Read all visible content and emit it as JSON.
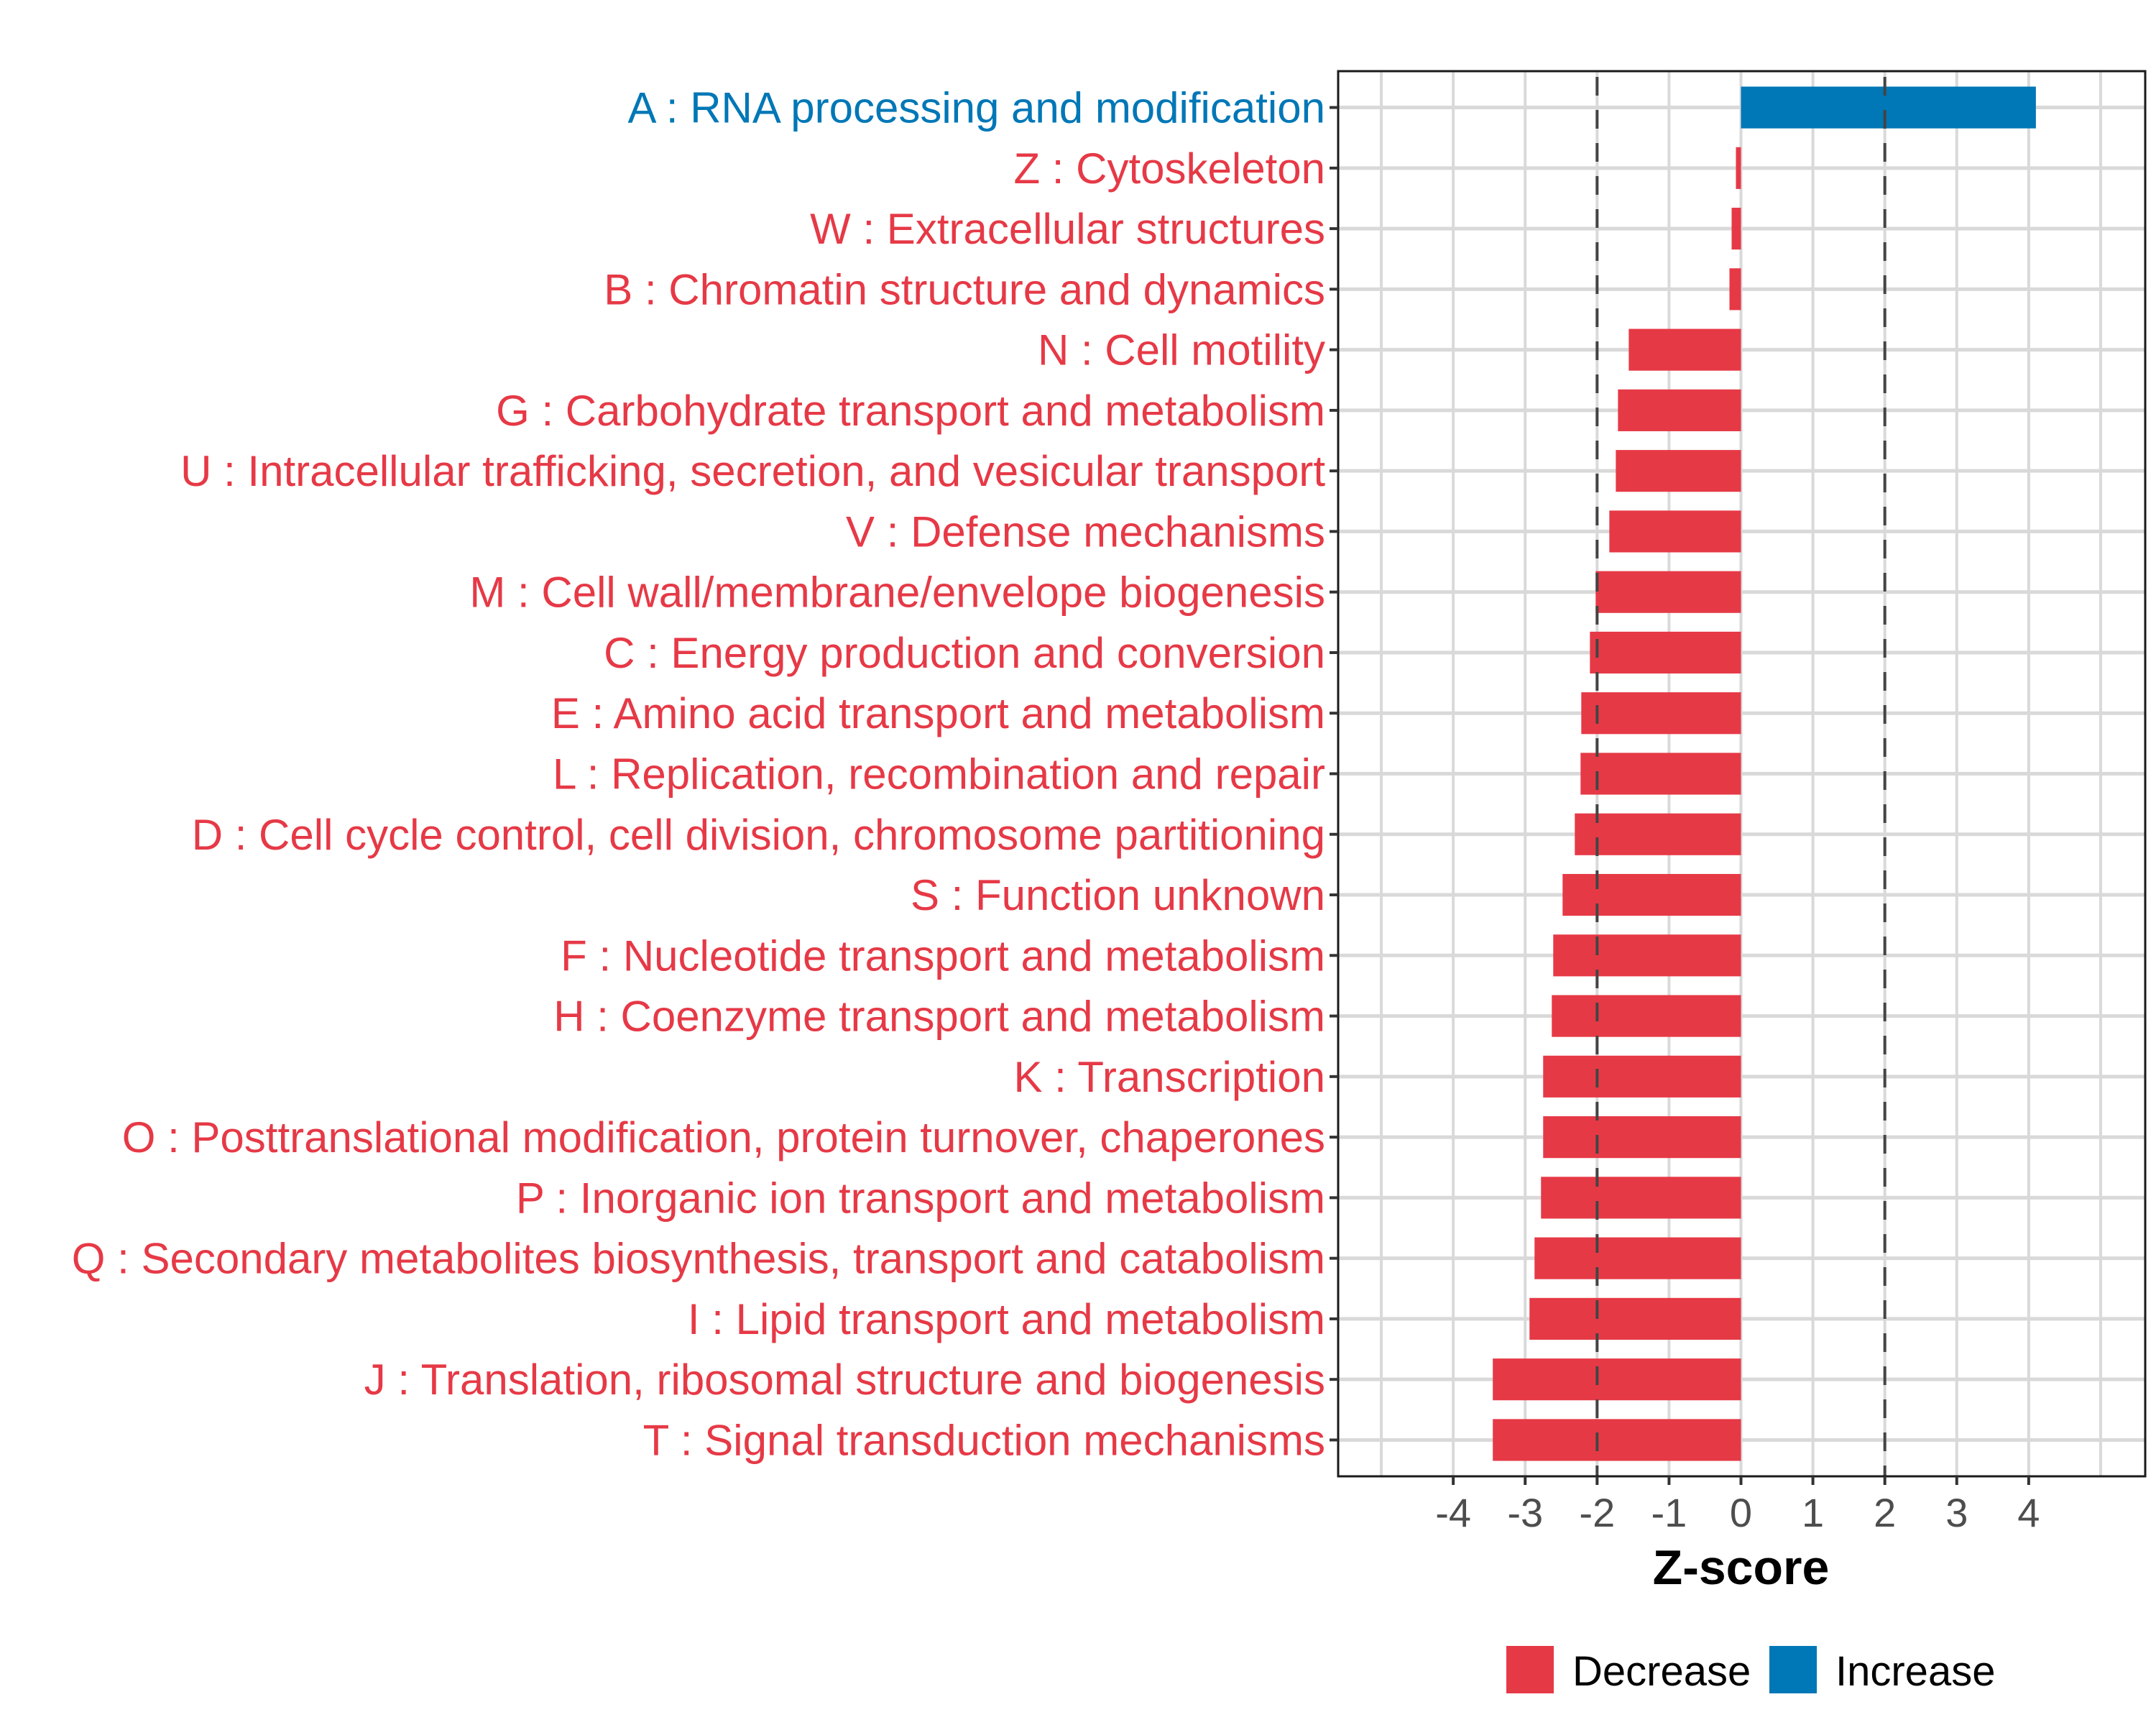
{
  "chart_data": {
    "type": "bar",
    "orientation": "horizontal",
    "title": "",
    "xlabel": "Z-score",
    "ylabel": "",
    "xlim": [
      -5.6,
      5.62
    ],
    "x_ticks": [
      -4,
      -3,
      -2,
      -1,
      0,
      1,
      2,
      3,
      4
    ],
    "x_tick_labels": [
      "-4",
      "-3",
      "-2",
      "-1",
      "0",
      "1",
      "2",
      "3",
      "4"
    ],
    "grid": true,
    "reference_lines": [
      {
        "value": -2,
        "style": "dashed",
        "color": "#444444"
      },
      {
        "value": 2,
        "style": "dashed",
        "color": "#444444"
      }
    ],
    "categories": [
      "A : RNA processing and modification",
      "Z : Cytoskeleton",
      "W : Extracellular structures",
      "B : Chromatin structure and dynamics",
      "N : Cell motility",
      "G : Carbohydrate transport and metabolism",
      "U : Intracellular trafficking, secretion, and vesicular transport",
      "V : Defense mechanisms",
      "M : Cell wall/membrane/envelope biogenesis",
      "C : Energy production and conversion",
      "E : Amino acid transport and metabolism",
      "L : Replication, recombination and repair",
      "D : Cell cycle control, cell division, chromosome partitioning",
      "S : Function unknown",
      "F : Nucleotide transport and metabolism",
      "H : Coenzyme transport and metabolism",
      "K : Transcription",
      "O : Posttranslational modification, protein turnover, chaperones",
      "P : Inorganic ion transport and metabolism",
      "Q : Secondary metabolites biosynthesis, transport and catabolism",
      "I : Lipid transport and metabolism",
      "J : Translation, ribosomal structure and biogenesis",
      "T : Signal transduction mechanisms"
    ],
    "values": [
      4.1,
      -0.07,
      -0.13,
      -0.16,
      -1.56,
      -1.71,
      -1.74,
      -1.83,
      -2.02,
      -2.1,
      -2.22,
      -2.23,
      -2.31,
      -2.48,
      -2.61,
      -2.63,
      -2.75,
      -2.75,
      -2.78,
      -2.87,
      -2.94,
      -3.45,
      -3.45
    ],
    "groups": [
      "Increase",
      "Decrease",
      "Decrease",
      "Decrease",
      "Decrease",
      "Decrease",
      "Decrease",
      "Decrease",
      "Decrease",
      "Decrease",
      "Decrease",
      "Decrease",
      "Decrease",
      "Decrease",
      "Decrease",
      "Decrease",
      "Decrease",
      "Decrease",
      "Decrease",
      "Decrease",
      "Decrease",
      "Decrease",
      "Decrease"
    ],
    "legend": {
      "placement": "bottom",
      "entries": [
        {
          "label": "Decrease",
          "color": "#E63946"
        },
        {
          "label": "Increase",
          "color": "#0077B6"
        }
      ]
    }
  }
}
